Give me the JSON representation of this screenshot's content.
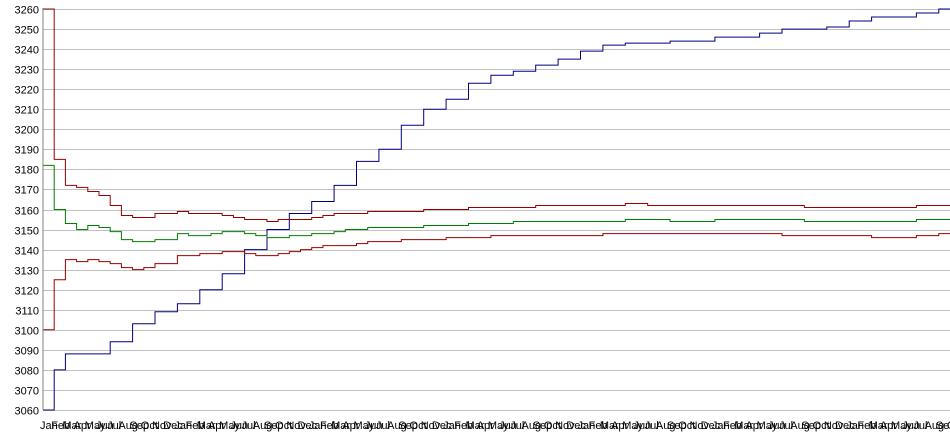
{
  "chart_data": {
    "type": "line",
    "title": "",
    "xlabel": "",
    "ylabel": "",
    "ylim": [
      3060,
      3260
    ],
    "ytick_step": 10,
    "grid": true,
    "legend": "none",
    "x_tick_labels": [
      "Jan",
      "Feb",
      "Mar",
      "Apr",
      "May",
      "Jun",
      "Jul",
      "Aug",
      "Sep",
      "Oct",
      "Nov",
      "Dec",
      "Jan",
      "Feb",
      "Mar",
      "Apr",
      "May",
      "Jun",
      "Jul",
      "Aug",
      "Sep",
      "Oct",
      "Nov",
      "Dec",
      "Jan",
      "Feb",
      "Mar",
      "Apr",
      "May",
      "Jun",
      "Jul",
      "Aug",
      "Sep",
      "Oct",
      "Nov",
      "Dec",
      "Jan",
      "Feb",
      "Mar",
      "Apr",
      "May",
      "Jun",
      "Jul",
      "Aug",
      "Sep",
      "Oct",
      "Nov",
      "Dec",
      "Jan",
      "Feb",
      "Mar",
      "Apr",
      "May",
      "Jun",
      "Jul",
      "Aug",
      "Sep",
      "Oct",
      "Nov",
      "Dec",
      "Jan",
      "Feb",
      "Mar",
      "Apr",
      "May",
      "Jun",
      "Jul",
      "Aug",
      "Sep",
      "Oct",
      "Nov",
      "Dec",
      "Jan",
      "Feb",
      "Mar",
      "Apr",
      "May",
      "Jun",
      "Jul",
      "Aug",
      "Sep",
      "Oct"
    ],
    "series": [
      {
        "color": "#000080",
        "points": [
          [
            0,
            3060
          ],
          [
            1,
            3080
          ],
          [
            2,
            3088
          ],
          [
            4,
            3088
          ],
          [
            6,
            3094
          ],
          [
            8,
            3103
          ],
          [
            10,
            3109
          ],
          [
            12,
            3113
          ],
          [
            14,
            3120
          ],
          [
            16,
            3128
          ],
          [
            18,
            3140
          ],
          [
            20,
            3150
          ],
          [
            22,
            3158
          ],
          [
            24,
            3164
          ],
          [
            26,
            3172
          ],
          [
            28,
            3184
          ],
          [
            30,
            3190
          ],
          [
            32,
            3202
          ],
          [
            34,
            3210
          ],
          [
            36,
            3215
          ],
          [
            38,
            3223
          ],
          [
            40,
            3227
          ],
          [
            42,
            3229
          ],
          [
            44,
            3232
          ],
          [
            46,
            3235
          ],
          [
            48,
            3239
          ],
          [
            50,
            3242
          ],
          [
            52,
            3243
          ],
          [
            56,
            3244
          ],
          [
            60,
            3246
          ],
          [
            64,
            3248
          ],
          [
            66,
            3250
          ],
          [
            70,
            3251
          ],
          [
            72,
            3254
          ],
          [
            74,
            3256
          ],
          [
            78,
            3258
          ],
          [
            80,
            3260
          ],
          [
            94,
            3260
          ]
        ]
      },
      {
        "color": "#008000",
        "points": [
          [
            0,
            3182
          ],
          [
            1,
            3160
          ],
          [
            2,
            3153
          ],
          [
            3,
            3150
          ],
          [
            4,
            3152
          ],
          [
            5,
            3151
          ],
          [
            6,
            3149
          ],
          [
            7,
            3145
          ],
          [
            8,
            3144
          ],
          [
            9,
            3144
          ],
          [
            10,
            3145
          ],
          [
            11,
            3145
          ],
          [
            12,
            3148
          ],
          [
            13,
            3147
          ],
          [
            14,
            3147
          ],
          [
            15,
            3148
          ],
          [
            16,
            3149
          ],
          [
            17,
            3149
          ],
          [
            18,
            3148
          ],
          [
            19,
            3147
          ],
          [
            20,
            3146
          ],
          [
            21,
            3146
          ],
          [
            22,
            3147
          ],
          [
            23,
            3147
          ],
          [
            24,
            3148
          ],
          [
            25,
            3148
          ],
          [
            26,
            3149
          ],
          [
            27,
            3150
          ],
          [
            28,
            3150
          ],
          [
            29,
            3151
          ],
          [
            30,
            3151
          ],
          [
            32,
            3151
          ],
          [
            34,
            3152
          ],
          [
            36,
            3152
          ],
          [
            38,
            3153
          ],
          [
            40,
            3153
          ],
          [
            42,
            3154
          ],
          [
            44,
            3154
          ],
          [
            46,
            3154
          ],
          [
            48,
            3154
          ],
          [
            50,
            3154
          ],
          [
            52,
            3155
          ],
          [
            54,
            3155
          ],
          [
            56,
            3154
          ],
          [
            58,
            3154
          ],
          [
            60,
            3155
          ],
          [
            62,
            3155
          ],
          [
            64,
            3155
          ],
          [
            66,
            3155
          ],
          [
            68,
            3154
          ],
          [
            70,
            3154
          ],
          [
            72,
            3154
          ],
          [
            74,
            3154
          ],
          [
            76,
            3154
          ],
          [
            78,
            3155
          ],
          [
            80,
            3155
          ],
          [
            82,
            3155
          ],
          [
            84,
            3156
          ],
          [
            86,
            3156
          ],
          [
            88,
            3156
          ],
          [
            90,
            3157
          ],
          [
            92,
            3157
          ],
          [
            94,
            3157
          ]
        ]
      },
      {
        "color": "#990000",
        "points": [
          [
            0,
            3260
          ],
          [
            1,
            3185
          ],
          [
            2,
            3172
          ],
          [
            3,
            3171
          ],
          [
            4,
            3169
          ],
          [
            5,
            3167
          ],
          [
            6,
            3162
          ],
          [
            7,
            3157
          ],
          [
            8,
            3156
          ],
          [
            9,
            3156
          ],
          [
            10,
            3158
          ],
          [
            11,
            3158
          ],
          [
            12,
            3159
          ],
          [
            13,
            3158
          ],
          [
            14,
            3158
          ],
          [
            15,
            3158
          ],
          [
            16,
            3157
          ],
          [
            17,
            3156
          ],
          [
            18,
            3155
          ],
          [
            19,
            3155
          ],
          [
            20,
            3154
          ],
          [
            21,
            3155
          ],
          [
            22,
            3155
          ],
          [
            23,
            3155
          ],
          [
            24,
            3156
          ],
          [
            25,
            3157
          ],
          [
            26,
            3158
          ],
          [
            27,
            3158
          ],
          [
            28,
            3158
          ],
          [
            29,
            3159
          ],
          [
            30,
            3159
          ],
          [
            32,
            3159
          ],
          [
            34,
            3160
          ],
          [
            36,
            3160
          ],
          [
            38,
            3161
          ],
          [
            40,
            3161
          ],
          [
            42,
            3161
          ],
          [
            44,
            3162
          ],
          [
            46,
            3162
          ],
          [
            48,
            3162
          ],
          [
            50,
            3162
          ],
          [
            52,
            3163
          ],
          [
            54,
            3162
          ],
          [
            56,
            3162
          ],
          [
            58,
            3162
          ],
          [
            60,
            3162
          ],
          [
            62,
            3162
          ],
          [
            64,
            3162
          ],
          [
            66,
            3162
          ],
          [
            68,
            3161
          ],
          [
            70,
            3161
          ],
          [
            72,
            3161
          ],
          [
            74,
            3161
          ],
          [
            76,
            3161
          ],
          [
            78,
            3162
          ],
          [
            80,
            3162
          ],
          [
            82,
            3163
          ],
          [
            84,
            3163
          ],
          [
            86,
            3163
          ],
          [
            88,
            3163
          ],
          [
            90,
            3164
          ],
          [
            92,
            3164
          ],
          [
            94,
            3164
          ]
        ]
      },
      {
        "color": "#990000",
        "points": [
          [
            0,
            3100
          ],
          [
            1,
            3125
          ],
          [
            2,
            3135
          ],
          [
            3,
            3134
          ],
          [
            4,
            3135
          ],
          [
            5,
            3134
          ],
          [
            6,
            3133
          ],
          [
            7,
            3131
          ],
          [
            8,
            3130
          ],
          [
            9,
            3131
          ],
          [
            10,
            3133
          ],
          [
            11,
            3133
          ],
          [
            12,
            3137
          ],
          [
            13,
            3137
          ],
          [
            14,
            3138
          ],
          [
            15,
            3138
          ],
          [
            16,
            3139
          ],
          [
            17,
            3139
          ],
          [
            18,
            3138
          ],
          [
            19,
            3137
          ],
          [
            20,
            3137
          ],
          [
            21,
            3138
          ],
          [
            22,
            3139
          ],
          [
            23,
            3140
          ],
          [
            24,
            3141
          ],
          [
            25,
            3142
          ],
          [
            26,
            3142
          ],
          [
            27,
            3142
          ],
          [
            28,
            3143
          ],
          [
            29,
            3144
          ],
          [
            30,
            3144
          ],
          [
            32,
            3145
          ],
          [
            34,
            3145
          ],
          [
            36,
            3146
          ],
          [
            38,
            3146
          ],
          [
            40,
            3147
          ],
          [
            42,
            3147
          ],
          [
            44,
            3147
          ],
          [
            46,
            3147
          ],
          [
            48,
            3147
          ],
          [
            50,
            3148
          ],
          [
            52,
            3148
          ],
          [
            54,
            3148
          ],
          [
            56,
            3148
          ],
          [
            58,
            3148
          ],
          [
            60,
            3148
          ],
          [
            62,
            3148
          ],
          [
            64,
            3148
          ],
          [
            66,
            3147
          ],
          [
            68,
            3147
          ],
          [
            70,
            3147
          ],
          [
            72,
            3147
          ],
          [
            74,
            3146
          ],
          [
            76,
            3146
          ],
          [
            78,
            3147
          ],
          [
            80,
            3148
          ],
          [
            82,
            3148
          ],
          [
            84,
            3149
          ],
          [
            86,
            3149
          ],
          [
            88,
            3150
          ],
          [
            90,
            3150
          ],
          [
            92,
            3151
          ],
          [
            94,
            3151
          ]
        ]
      }
    ]
  }
}
